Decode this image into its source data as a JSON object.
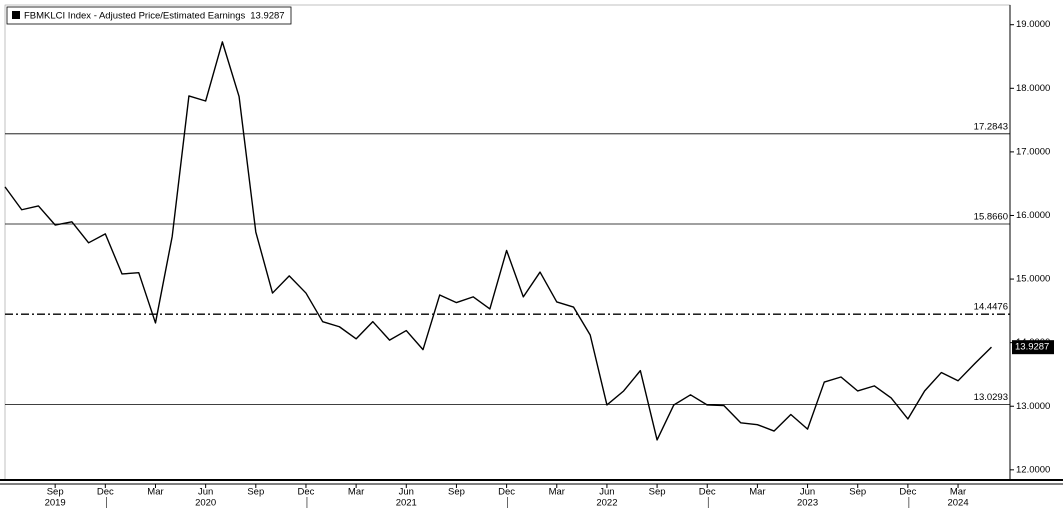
{
  "chart_data": {
    "type": "line",
    "categories": [
      "2019-06",
      "2019-07",
      "2019-08",
      "2019-09",
      "2019-10",
      "2019-11",
      "2019-12",
      "2020-01",
      "2020-02",
      "2020-03",
      "2020-04",
      "2020-05",
      "2020-06",
      "2020-07",
      "2020-08",
      "2020-09",
      "2020-10",
      "2020-11",
      "2020-12",
      "2021-01",
      "2021-02",
      "2021-03",
      "2021-04",
      "2021-05",
      "2021-06",
      "2021-07",
      "2021-08",
      "2021-09",
      "2021-10",
      "2021-11",
      "2021-12",
      "2022-01",
      "2022-02",
      "2022-03",
      "2022-04",
      "2022-05",
      "2022-06",
      "2022-07",
      "2022-08",
      "2022-09",
      "2022-10",
      "2022-11",
      "2022-12",
      "2023-01",
      "2023-02",
      "2023-03",
      "2023-04",
      "2023-05",
      "2023-06",
      "2023-07",
      "2023-08",
      "2023-09",
      "2023-10",
      "2023-11",
      "2023-12",
      "2024-01",
      "2024-02",
      "2024-03",
      "2024-04",
      "2024-05"
    ],
    "series": [
      {
        "name": "FBMKLCI Index - Adjusted Price/Estimated Earnings",
        "color": "#000000",
        "values": [
          16.45,
          16.09,
          16.15,
          15.85,
          15.9,
          15.57,
          15.71,
          15.08,
          15.1,
          14.31,
          15.67,
          17.88,
          17.8,
          18.73,
          17.87,
          15.74,
          14.78,
          15.05,
          14.78,
          14.33,
          14.25,
          14.06,
          14.33,
          14.04,
          14.19,
          13.89,
          14.75,
          14.63,
          14.72,
          14.53,
          15.45,
          14.72,
          15.11,
          14.64,
          14.56,
          14.12,
          13.02,
          13.24,
          13.56,
          12.47,
          13.02,
          13.18,
          13.02,
          13.01,
          12.74,
          12.71,
          12.61,
          12.87,
          12.64,
          13.38,
          13.46,
          13.24,
          13.32,
          13.13,
          12.8,
          13.24,
          13.53,
          13.4,
          13.67,
          13.9287
        ]
      }
    ],
    "ylim": [
      11.84,
      19.31
    ],
    "yticks": [
      {
        "value": 12,
        "label": "12.0000"
      },
      {
        "value": 13,
        "label": "13.0000"
      },
      {
        "value": 14,
        "label": "14.0000"
      },
      {
        "value": 15,
        "label": "15.0000"
      },
      {
        "value": 16,
        "label": "16.0000"
      },
      {
        "value": 17,
        "label": "17.0000"
      },
      {
        "value": 18,
        "label": "18.0000"
      },
      {
        "value": 19,
        "label": "19.0000"
      }
    ],
    "xticks": [
      {
        "value": "2019-09",
        "label": "Sep"
      },
      {
        "value": "2019-12",
        "label": "Dec"
      },
      {
        "value": "2020-03",
        "label": "Mar"
      },
      {
        "value": "2020-06",
        "label": "Jun"
      },
      {
        "value": "2020-09",
        "label": "Sep"
      },
      {
        "value": "2020-12",
        "label": "Dec"
      },
      {
        "value": "2021-03",
        "label": "Mar"
      },
      {
        "value": "2021-06",
        "label": "Jun"
      },
      {
        "value": "2021-09",
        "label": "Sep"
      },
      {
        "value": "2021-12",
        "label": "Dec"
      },
      {
        "value": "2022-03",
        "label": "Mar"
      },
      {
        "value": "2022-06",
        "label": "Jun"
      },
      {
        "value": "2022-09",
        "label": "Sep"
      },
      {
        "value": "2022-12",
        "label": "Dec"
      },
      {
        "value": "2023-03",
        "label": "Mar"
      },
      {
        "value": "2023-06",
        "label": "Jun"
      },
      {
        "value": "2023-09",
        "label": "Sep"
      },
      {
        "value": "2023-12",
        "label": "Dec"
      },
      {
        "value": "2024-03",
        "label": "Mar"
      }
    ],
    "year_labels": [
      {
        "value": "2019-09",
        "label": "2019"
      },
      {
        "value": "2020-06",
        "label": "2020"
      },
      {
        "value": "2021-06",
        "label": "2021"
      },
      {
        "value": "2022-06",
        "label": "2022"
      },
      {
        "value": "2023-06",
        "label": "2023"
      },
      {
        "value": "2024-03",
        "label": "2024"
      }
    ],
    "hlines": [
      {
        "value": 17.2843,
        "label": "17.2843",
        "dash": "solid"
      },
      {
        "value": 15.866,
        "label": "15.8660",
        "dash": "solid"
      },
      {
        "value": 14.4476,
        "label": "14.4476",
        "dash": "dashdot"
      },
      {
        "value": 13.0293,
        "label": "13.0293",
        "dash": "solid"
      }
    ]
  }
}
